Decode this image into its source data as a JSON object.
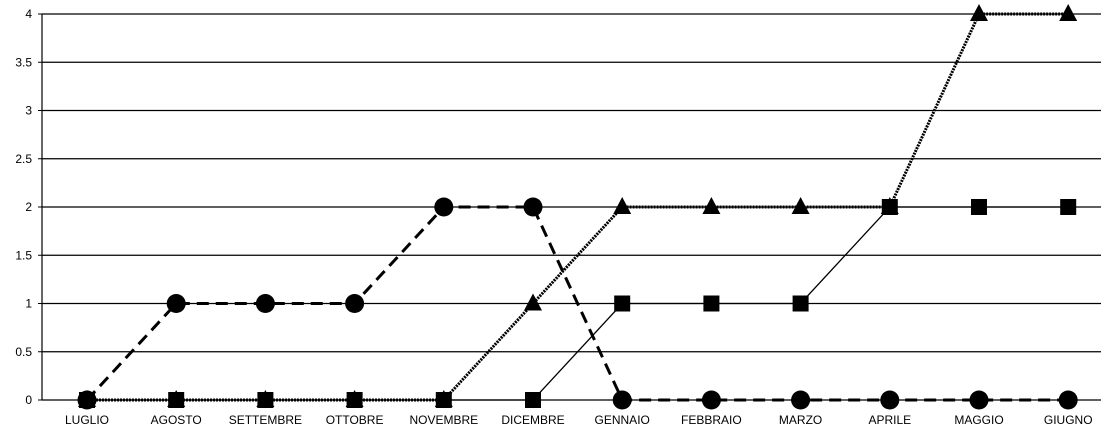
{
  "chart_data": {
    "type": "line",
    "title": "",
    "xlabel": "",
    "ylabel": "",
    "categories": [
      "LUGLIO",
      "AGOSTO",
      "SETTEMBRE",
      "OTTOBRE",
      "NOVEMBRE",
      "DICEMBRE",
      "GENNAIO",
      "FEBBRAIO",
      "MARZO",
      "APRILE",
      "MAGGIO",
      "GIUGNO"
    ],
    "y_ticks": [
      "0",
      "0.5",
      "1",
      "1.5",
      "2",
      "2.5",
      "3",
      "3.5",
      "4"
    ],
    "ylim": [
      0,
      4
    ],
    "grid": "horizontal",
    "legend": "none",
    "series": [
      {
        "marker": "square",
        "line_style": "solid",
        "color": "#000000",
        "values": [
          0,
          0,
          0,
          0,
          0,
          0,
          1,
          1,
          1,
          2,
          2,
          2
        ]
      },
      {
        "marker": "triangle",
        "line_style": "dotted",
        "color": "#000000",
        "values": [
          0,
          0,
          0,
          0,
          0,
          1,
          2,
          2,
          2,
          2,
          4,
          4
        ]
      },
      {
        "marker": "circle",
        "line_style": "dashed",
        "color": "#000000",
        "values": [
          0,
          1,
          1,
          1,
          2,
          2,
          0,
          0,
          0,
          0,
          0,
          0
        ]
      }
    ]
  }
}
